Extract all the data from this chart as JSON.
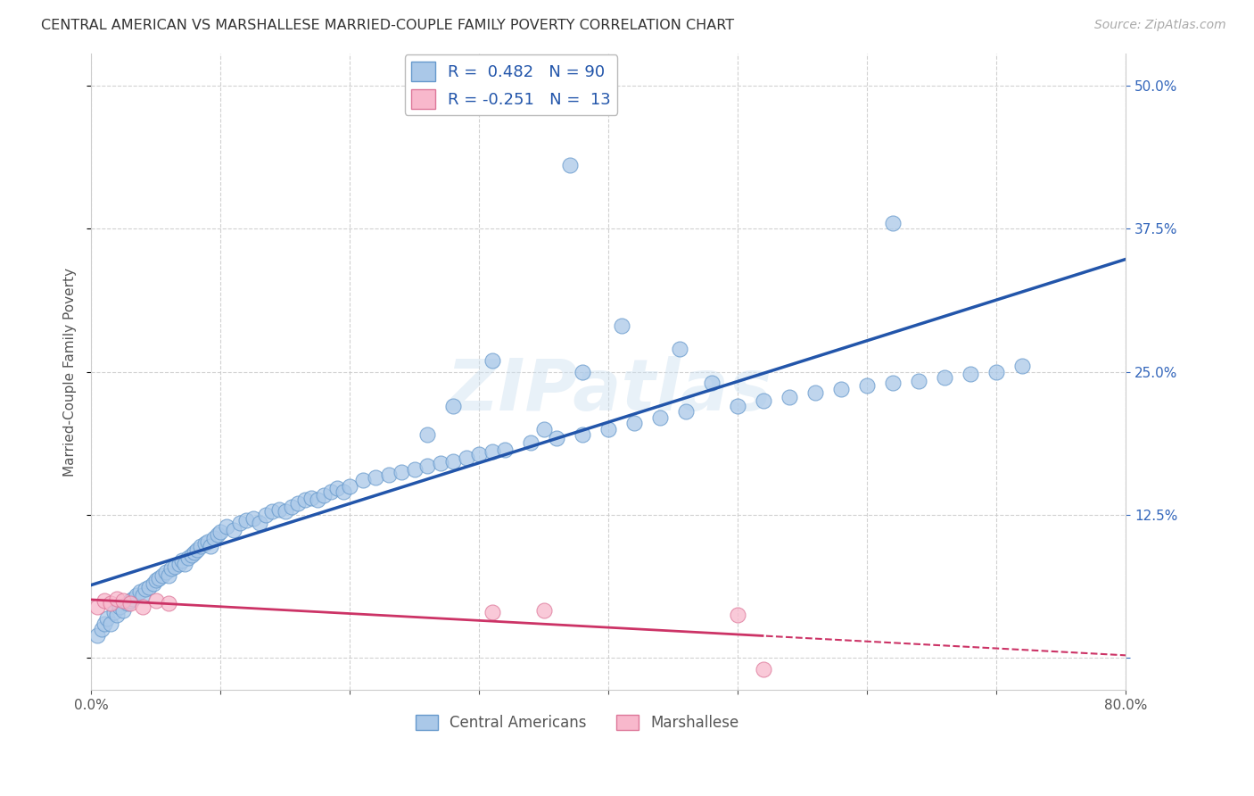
{
  "title": "CENTRAL AMERICAN VS MARSHALLESE MARRIED-COUPLE FAMILY POVERTY CORRELATION CHART",
  "source": "Source: ZipAtlas.com",
  "ylabel": "Married-Couple Family Poverty",
  "xlim": [
    0.0,
    0.8
  ],
  "ylim": [
    -0.028,
    0.528
  ],
  "xticks": [
    0.0,
    0.1,
    0.2,
    0.3,
    0.4,
    0.5,
    0.6,
    0.7,
    0.8
  ],
  "xticklabels": [
    "0.0%",
    "",
    "",
    "",
    "",
    "",
    "",
    "",
    "80.0%"
  ],
  "yticks": [
    0.0,
    0.125,
    0.25,
    0.375,
    0.5
  ],
  "yticklabels": [
    "",
    "12.5%",
    "25.0%",
    "37.5%",
    "50.0%"
  ],
  "blue_face_color": "#aac8e8",
  "blue_edge_color": "#6699cc",
  "blue_line_color": "#2255aa",
  "pink_face_color": "#f8b8cc",
  "pink_edge_color": "#dd7799",
  "pink_line_color": "#cc3366",
  "R_blue": 0.482,
  "N_blue": 90,
  "R_pink": -0.251,
  "N_pink": 13,
  "watermark": "ZIPatlas",
  "legend_label_blue": "Central Americans",
  "legend_label_pink": "Marshallese",
  "blue_x": [
    0.005,
    0.008,
    0.01,
    0.012,
    0.015,
    0.018,
    0.02,
    0.022,
    0.025,
    0.028,
    0.03,
    0.032,
    0.035,
    0.038,
    0.04,
    0.042,
    0.045,
    0.048,
    0.05,
    0.052,
    0.055,
    0.058,
    0.06,
    0.062,
    0.065,
    0.068,
    0.07,
    0.072,
    0.075,
    0.078,
    0.08,
    0.082,
    0.085,
    0.088,
    0.09,
    0.092,
    0.095,
    0.098,
    0.1,
    0.105,
    0.11,
    0.115,
    0.12,
    0.125,
    0.13,
    0.135,
    0.14,
    0.145,
    0.15,
    0.155,
    0.16,
    0.165,
    0.17,
    0.175,
    0.18,
    0.185,
    0.19,
    0.195,
    0.2,
    0.21,
    0.22,
    0.23,
    0.24,
    0.25,
    0.26,
    0.27,
    0.28,
    0.29,
    0.3,
    0.31,
    0.32,
    0.34,
    0.36,
    0.38,
    0.4,
    0.42,
    0.44,
    0.46,
    0.5,
    0.52,
    0.54,
    0.56,
    0.58,
    0.6,
    0.62,
    0.64,
    0.66,
    0.68,
    0.7,
    0.72
  ],
  "blue_y": [
    0.02,
    0.025,
    0.03,
    0.035,
    0.03,
    0.04,
    0.038,
    0.045,
    0.042,
    0.048,
    0.05,
    0.052,
    0.055,
    0.058,
    0.055,
    0.06,
    0.062,
    0.065,
    0.068,
    0.07,
    0.072,
    0.075,
    0.072,
    0.078,
    0.08,
    0.082,
    0.085,
    0.082,
    0.088,
    0.09,
    0.092,
    0.095,
    0.098,
    0.1,
    0.102,
    0.098,
    0.105,
    0.108,
    0.11,
    0.115,
    0.112,
    0.118,
    0.12,
    0.122,
    0.118,
    0.125,
    0.128,
    0.13,
    0.128,
    0.132,
    0.135,
    0.138,
    0.14,
    0.138,
    0.142,
    0.145,
    0.148,
    0.145,
    0.15,
    0.155,
    0.158,
    0.16,
    0.162,
    0.165,
    0.168,
    0.17,
    0.172,
    0.175,
    0.178,
    0.18,
    0.182,
    0.188,
    0.192,
    0.195,
    0.2,
    0.205,
    0.21,
    0.215,
    0.22,
    0.225,
    0.228,
    0.232,
    0.235,
    0.238,
    0.24,
    0.242,
    0.245,
    0.248,
    0.25,
    0.255
  ],
  "blue_outliers_x": [
    0.37,
    0.62,
    0.38,
    0.28,
    0.455,
    0.31,
    0.41,
    0.35,
    0.26,
    0.48
  ],
  "blue_outliers_y": [
    0.43,
    0.38,
    0.25,
    0.22,
    0.27,
    0.26,
    0.29,
    0.2,
    0.195,
    0.24
  ],
  "pink_x": [
    0.005,
    0.01,
    0.015,
    0.02,
    0.025,
    0.03,
    0.04,
    0.05,
    0.06,
    0.31,
    0.35,
    0.5,
    0.52
  ],
  "pink_y": [
    0.045,
    0.05,
    0.048,
    0.052,
    0.05,
    0.048,
    0.045,
    0.05,
    0.048,
    0.04,
    0.042,
    0.038,
    -0.01
  ]
}
